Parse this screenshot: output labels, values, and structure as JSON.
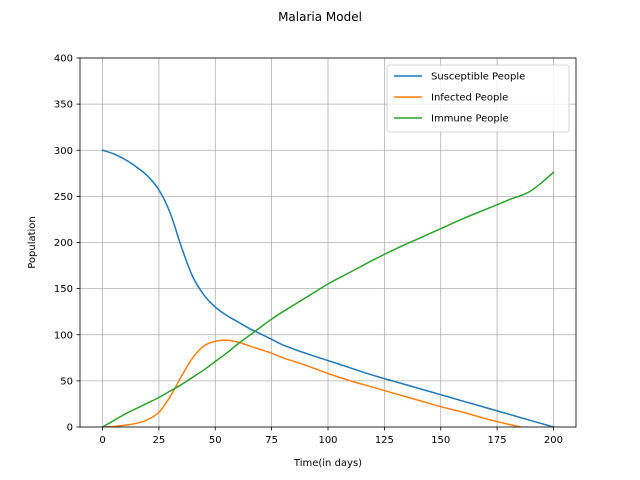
{
  "chart_data": {
    "type": "line",
    "title": "Malaria Model",
    "xlabel": "Time(in days)",
    "ylabel": "Population",
    "xlim": [
      -10,
      210
    ],
    "ylim": [
      0,
      400
    ],
    "xticks": [
      0,
      25,
      50,
      75,
      100,
      125,
      150,
      175,
      200
    ],
    "yticks": [
      0,
      50,
      100,
      150,
      200,
      250,
      300,
      350,
      400
    ],
    "grid": true,
    "legend_position": "top-right",
    "x": [
      0,
      5,
      10,
      15,
      20,
      25,
      30,
      35,
      40,
      45,
      50,
      55,
      60,
      65,
      70,
      75,
      80,
      90,
      100,
      110,
      120,
      130,
      140,
      150,
      160,
      170,
      180,
      190,
      200
    ],
    "series": [
      {
        "name": "Susceptible People",
        "color": "#1f77b4",
        "values": [
          300,
          296,
          290,
          282,
          272,
          257,
          232,
          195,
          163,
          143,
          130,
          121,
          114,
          107,
          101,
          95,
          89,
          80,
          72,
          64,
          56,
          49,
          42,
          35,
          28,
          21,
          14,
          7,
          0
        ]
      },
      {
        "name": "Infected People",
        "color": "#ff7f0e",
        "values": [
          0,
          0.5,
          2,
          4,
          8,
          16,
          33,
          55,
          75,
          88,
          93,
          94,
          92,
          88,
          84,
          80,
          75,
          67,
          58,
          50,
          43,
          36,
          29,
          22,
          16,
          9,
          3,
          -2,
          -3
        ]
      },
      {
        "name": "Immune People",
        "color": "#2ca02c",
        "values": [
          0,
          7,
          14,
          20,
          26,
          32,
          39,
          46,
          54,
          62,
          71,
          80,
          90,
          99,
          108,
          117,
          125,
          140,
          155,
          168,
          181,
          193,
          204,
          215,
          226,
          236,
          246,
          256,
          276
        ]
      }
    ]
  }
}
